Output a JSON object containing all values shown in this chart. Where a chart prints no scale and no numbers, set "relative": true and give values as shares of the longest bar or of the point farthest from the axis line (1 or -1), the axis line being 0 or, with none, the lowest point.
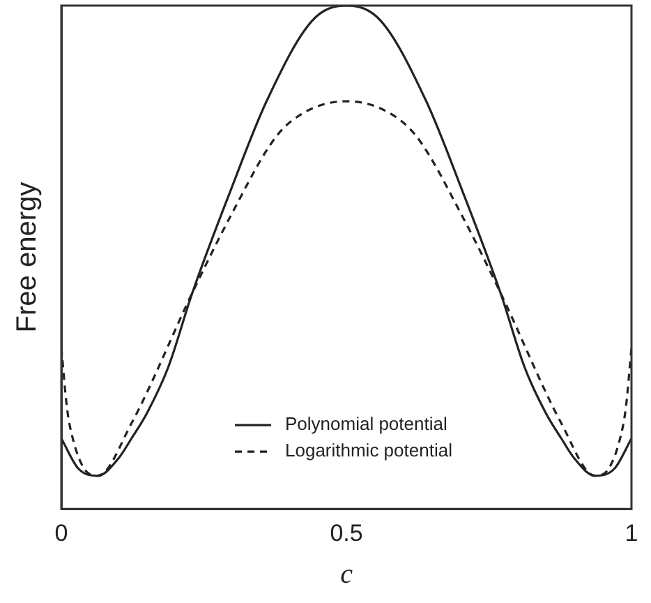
{
  "chart_data": {
    "type": "line",
    "relative": true,
    "xlabel": "c",
    "ylabel": "Free energy",
    "xlim": [
      0,
      1
    ],
    "xticks": [
      0,
      0.5,
      1
    ],
    "grid": false,
    "legend": "bottom",
    "tick_labels": "x",
    "marker": "none",
    "series": [
      {
        "name": "Polynomial potential",
        "color": "#222222",
        "line_style": "solid",
        "x": [
          0,
          0.03,
          0.064,
          0.1,
          0.123,
          0.15,
          0.187,
          0.23,
          0.296,
          0.36,
          0.44,
          0.5,
          0.56,
          0.64,
          0.704,
          0.77,
          0.813,
          0.85,
          0.877,
          0.9,
          0.936,
          0.97,
          1
        ],
        "values": [
          0.14,
          0.08,
          0.066,
          0.1,
          0.14,
          0.19,
          0.28,
          0.43,
          0.63,
          0.81,
          0.97,
          1,
          0.97,
          0.81,
          0.63,
          0.43,
          0.28,
          0.19,
          0.14,
          0.1,
          0.066,
          0.08,
          0.14
        ]
      },
      {
        "name": "Logarithmic potential",
        "color": "#222222",
        "line_style": "dashed",
        "x": [
          0,
          0.01,
          0.02,
          0.04,
          0.064,
          0.123,
          0.23,
          0.296,
          0.377,
          0.43,
          0.5,
          0.57,
          0.623,
          0.704,
          0.77,
          0.877,
          0.936,
          0.96,
          0.98,
          0.99,
          1
        ],
        "values": [
          0.32,
          0.2,
          0.14,
          0.08,
          0.066,
          0.17,
          0.43,
          0.58,
          0.74,
          0.79,
          0.81,
          0.79,
          0.74,
          0.58,
          0.43,
          0.17,
          0.066,
          0.08,
          0.14,
          0.2,
          0.32
        ]
      }
    ]
  }
}
